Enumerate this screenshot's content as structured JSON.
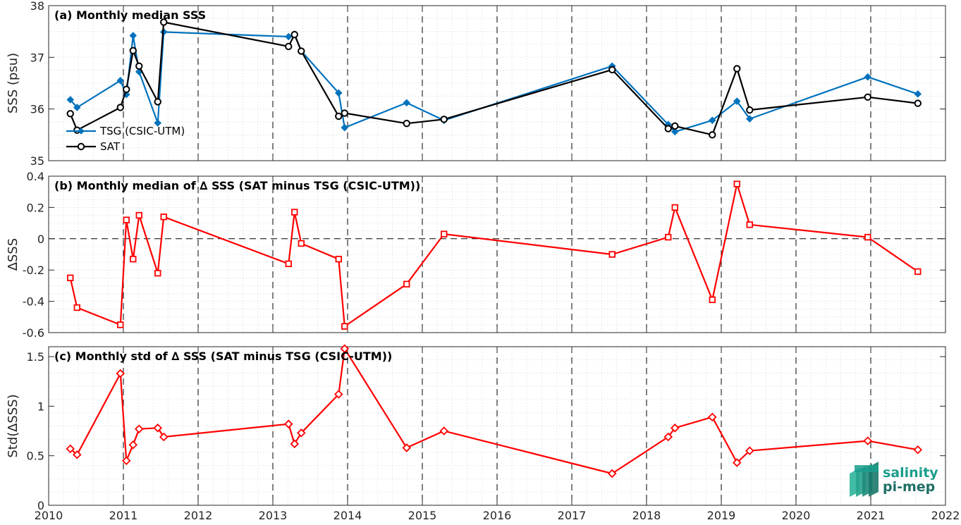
{
  "colors": {
    "tsg": "#0072BD",
    "sat": "#000000",
    "delta": "#FF0000",
    "logo_text": "#1a9e8c",
    "logo_dark": "#1f6f66"
  },
  "logo": {
    "line1": "salinity",
    "line2": "pi-mep"
  },
  "chart_data": [
    {
      "id": "a",
      "type": "line",
      "title": "(a) Monthly median SSS",
      "xlabel": "",
      "ylabel": "SSS (psu)",
      "xlim": [
        2010,
        2022
      ],
      "ylim": [
        35,
        38
      ],
      "yticks": [
        35,
        36,
        37,
        38
      ],
      "ytick_labels": [
        "35",
        "36",
        "37",
        "38"
      ],
      "vlines": [
        2011,
        2012,
        2013,
        2014,
        2015,
        2016,
        2017,
        2018,
        2019,
        2020,
        2021
      ],
      "grid": true,
      "legend": "lower-left",
      "series": [
        {
          "name": "TSG (CSIC-UTM)",
          "color": "#0072BD",
          "marker": "diamond",
          "x": [
            2010.29,
            2010.38,
            2010.96,
            2011.04,
            2011.13,
            2011.21,
            2011.46,
            2011.54,
            2013.21,
            2013.29,
            2013.38,
            2013.88,
            2013.96,
            2014.79,
            2015.29,
            2017.54,
            2018.29,
            2018.38,
            2018.88,
            2019.21,
            2019.38,
            2020.96,
            2021.63
          ],
          "y": [
            36.18,
            36.03,
            36.55,
            36.28,
            37.42,
            36.72,
            35.73,
            37.49,
            37.4,
            37.45,
            37.12,
            36.31,
            35.64,
            36.12,
            35.78,
            36.83,
            35.7,
            35.56,
            35.78,
            36.15,
            35.81,
            36.62,
            36.29
          ]
        },
        {
          "name": "SAT",
          "color": "#000000",
          "marker": "circle",
          "x": [
            2010.29,
            2010.38,
            2010.96,
            2011.04,
            2011.13,
            2011.21,
            2011.46,
            2011.54,
            2013.21,
            2013.29,
            2013.38,
            2013.88,
            2013.96,
            2014.79,
            2015.29,
            2017.54,
            2018.29,
            2018.38,
            2018.88,
            2019.21,
            2019.38,
            2020.96,
            2021.63
          ],
          "y": [
            35.91,
            35.59,
            36.03,
            36.38,
            37.13,
            36.83,
            36.14,
            37.68,
            37.21,
            37.44,
            37.12,
            35.86,
            35.92,
            35.72,
            35.8,
            36.76,
            35.62,
            35.67,
            35.5,
            36.78,
            35.98,
            36.23,
            36.11
          ]
        }
      ]
    },
    {
      "id": "b",
      "type": "line",
      "title": "(b) Monthly median of ∆ SSS (SAT minus TSG (CSIC-UTM))",
      "xlabel": "",
      "ylabel": "∆SSS",
      "xlim": [
        2010,
        2022
      ],
      "ylim": [
        -0.6,
        0.4
      ],
      "yticks": [
        -0.6,
        -0.4,
        -0.2,
        0,
        0.2,
        0.4
      ],
      "ytick_labels": [
        "-0.6",
        "-0.4",
        "-0.2",
        "0",
        "0.2",
        "0.4"
      ],
      "zero_line": true,
      "vlines": [
        2011,
        2012,
        2013,
        2014,
        2015,
        2016,
        2017,
        2018,
        2019,
        2020,
        2021
      ],
      "grid": true,
      "series": [
        {
          "name": "",
          "color": "#FF0000",
          "marker": "square",
          "x": [
            2010.29,
            2010.38,
            2010.96,
            2011.04,
            2011.13,
            2011.21,
            2011.46,
            2011.54,
            2013.21,
            2013.29,
            2013.38,
            2013.88,
            2013.96,
            2014.79,
            2015.29,
            2017.54,
            2018.29,
            2018.38,
            2018.88,
            2019.21,
            2019.38,
            2020.96,
            2021.63
          ],
          "y": [
            -0.25,
            -0.44,
            -0.55,
            0.12,
            -0.13,
            0.15,
            -0.22,
            0.14,
            -0.16,
            0.17,
            -0.03,
            -0.13,
            -0.56,
            -0.29,
            0.03,
            -0.1,
            0.01,
            0.2,
            -0.39,
            0.35,
            0.09,
            0.01,
            -0.21
          ]
        }
      ]
    },
    {
      "id": "c",
      "type": "line",
      "title": "(c) Monthly std of ∆ SSS (SAT minus TSG (CSIC-UTM))",
      "xlabel": "",
      "ylabel": "Std(∆SSS)",
      "xlim": [
        2010,
        2022
      ],
      "ylim": [
        0,
        1.6
      ],
      "yticks": [
        0,
        0.5,
        1,
        1.5
      ],
      "ytick_labels": [
        "0",
        "0.5",
        "1",
        "1.5"
      ],
      "xticks": [
        2010,
        2011,
        2012,
        2013,
        2014,
        2015,
        2016,
        2017,
        2018,
        2019,
        2020,
        2021,
        2022
      ],
      "xtick_labels": [
        "2010",
        "2011",
        "2012",
        "2013",
        "2014",
        "2015",
        "2016",
        "2017",
        "2018",
        "2019",
        "2020",
        "2021",
        "2022"
      ],
      "vlines": [
        2011,
        2012,
        2013,
        2014,
        2015,
        2016,
        2017,
        2018,
        2019,
        2020,
        2021
      ],
      "grid": true,
      "series": [
        {
          "name": "",
          "color": "#FF0000",
          "marker": "diamond",
          "x": [
            2010.29,
            2010.38,
            2010.96,
            2011.04,
            2011.13,
            2011.21,
            2011.46,
            2011.54,
            2013.21,
            2013.29,
            2013.38,
            2013.88,
            2013.96,
            2014.79,
            2015.29,
            2017.54,
            2018.29,
            2018.38,
            2018.88,
            2019.21,
            2019.38,
            2020.96,
            2021.63
          ],
          "y": [
            0.57,
            0.51,
            1.33,
            0.45,
            0.61,
            0.77,
            0.78,
            0.69,
            0.82,
            0.62,
            0.73,
            1.12,
            1.58,
            0.58,
            0.75,
            0.32,
            0.69,
            0.78,
            0.89,
            0.43,
            0.55,
            0.65,
            0.56
          ]
        }
      ]
    }
  ]
}
